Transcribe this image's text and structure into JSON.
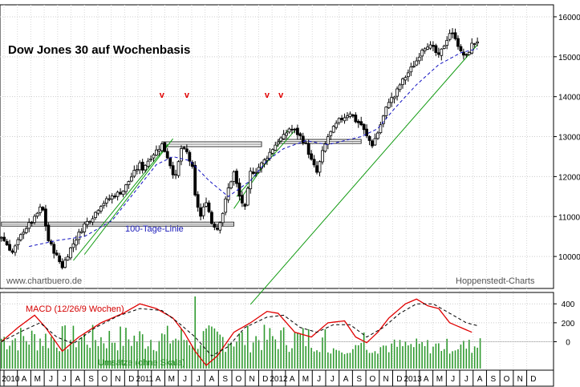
{
  "chart_data": {
    "type": "candlestick",
    "title": "Dow Jones 30 auf Wochenbasis",
    "source_left": "www.chartbuero.de",
    "source_right": "Hoppenstedt-Charts",
    "price_axis": {
      "ticks": [
        "16000",
        "15000",
        "14000",
        "13000",
        "12000",
        "11000",
        "10000"
      ],
      "range": [
        9200,
        16300
      ]
    },
    "macd_axis": {
      "ticks": [
        "400",
        "200",
        "0"
      ],
      "range": [
        -300,
        520
      ]
    },
    "x_months": [
      "2010",
      "A",
      "M",
      "J",
      "J",
      "A",
      "S",
      "O",
      "N",
      "D",
      "2011",
      "A",
      "M",
      "J",
      "J",
      "A",
      "S",
      "O",
      "N",
      "D",
      "2012",
      "A",
      "M",
      "J",
      "J",
      "A",
      "S",
      "O",
      "N",
      "D",
      "2013",
      "A",
      "M",
      "J",
      "J",
      "A",
      "S",
      "O",
      "N",
      "D"
    ],
    "highlight_years": [
      "2010",
      "2011",
      "2012",
      "2013"
    ],
    "weeks_total": 200,
    "price_series": {
      "name": "Dow Jones 30",
      "anchors": [
        [
          0,
          10500
        ],
        [
          4,
          10100
        ],
        [
          8,
          10650
        ],
        [
          12,
          10950
        ],
        [
          14,
          11200
        ],
        [
          15,
          11150
        ],
        [
          17,
          10400
        ],
        [
          20,
          10000
        ],
        [
          22,
          9750
        ],
        [
          25,
          10200
        ],
        [
          27,
          10450
        ],
        [
          30,
          10800
        ],
        [
          33,
          11000
        ],
        [
          36,
          11300
        ],
        [
          40,
          11500
        ],
        [
          44,
          11650
        ],
        [
          47,
          12000
        ],
        [
          50,
          12300
        ],
        [
          51,
          12200
        ],
        [
          54,
          12500
        ],
        [
          56,
          12650
        ],
        [
          58,
          12800
        ],
        [
          60,
          12500
        ],
        [
          62,
          12100
        ],
        [
          63,
          12000
        ],
        [
          65,
          12700
        ],
        [
          67,
          12600
        ],
        [
          69,
          12200
        ],
        [
          70,
          11500
        ],
        [
          72,
          11000
        ],
        [
          74,
          11400
        ],
        [
          76,
          10850
        ],
        [
          78,
          10700
        ],
        [
          80,
          11100
        ],
        [
          82,
          11700
        ],
        [
          84,
          12100
        ],
        [
          86,
          11500
        ],
        [
          88,
          11200
        ],
        [
          90,
          12100
        ],
        [
          92,
          12150
        ],
        [
          95,
          12400
        ],
        [
          98,
          12700
        ],
        [
          100,
          12900
        ],
        [
          102,
          13000
        ],
        [
          104,
          13200
        ],
        [
          106,
          13150
        ],
        [
          108,
          13000
        ],
        [
          110,
          12800
        ],
        [
          112,
          12400
        ],
        [
          114,
          12100
        ],
        [
          116,
          12600
        ],
        [
          118,
          13000
        ],
        [
          120,
          13200
        ],
        [
          122,
          13400
        ],
        [
          124,
          13500
        ],
        [
          126,
          13600
        ],
        [
          128,
          13400
        ],
        [
          130,
          13300
        ],
        [
          132,
          13000
        ],
        [
          134,
          12800
        ],
        [
          136,
          13100
        ],
        [
          138,
          13500
        ],
        [
          140,
          13900
        ],
        [
          142,
          14000
        ],
        [
          144,
          14300
        ],
        [
          146,
          14500
        ],
        [
          148,
          14700
        ],
        [
          150,
          14900
        ],
        [
          152,
          15200
        ],
        [
          154,
          15300
        ],
        [
          156,
          15200
        ],
        [
          158,
          15000
        ],
        [
          160,
          15300
        ],
        [
          162,
          15600
        ],
        [
          164,
          15500
        ],
        [
          166,
          15100
        ],
        [
          168,
          15000
        ],
        [
          170,
          15300
        ],
        [
          172,
          15400
        ]
      ]
    },
    "sma100": {
      "name": "100-Tage-Linie",
      "anchors": [
        [
          10,
          10250
        ],
        [
          20,
          10400
        ],
        [
          30,
          10500
        ],
        [
          40,
          10900
        ],
        [
          48,
          11600
        ],
        [
          56,
          12300
        ],
        [
          62,
          12500
        ],
        [
          68,
          12400
        ],
        [
          75,
          11900
        ],
        [
          82,
          11500
        ],
        [
          90,
          11900
        ],
        [
          96,
          12400
        ],
        [
          102,
          12700
        ],
        [
          110,
          12900
        ],
        [
          118,
          12800
        ],
        [
          124,
          12900
        ],
        [
          130,
          13000
        ],
        [
          136,
          13200
        ],
        [
          142,
          13700
        ],
        [
          150,
          14300
        ],
        [
          158,
          14800
        ],
        [
          166,
          15100
        ],
        [
          172,
          15200
        ]
      ]
    },
    "resistance_zones": [
      {
        "weeks": [
          58,
          94
        ],
        "range": [
          12750,
          12870
        ]
      },
      {
        "weeks": [
          100,
          130
        ],
        "range": [
          12830,
          12930
        ]
      },
      {
        "weeks": [
          0,
          84
        ],
        "range": [
          10760,
          10860
        ]
      }
    ],
    "trendlines": [
      {
        "from": [
          90,
          8800
        ],
        "to": [
          172,
          15300
        ]
      },
      {
        "from": [
          26,
          9900
        ],
        "to": [
          60,
          12800
        ]
      },
      {
        "from": [
          30,
          10050
        ],
        "to": [
          62,
          12950
        ]
      },
      {
        "from": [
          84,
          11200
        ],
        "to": [
          104,
          13200
        ]
      },
      {
        "from": [
          85,
          11500
        ],
        "to": [
          106,
          13150
        ]
      }
    ],
    "markers_v": [
      {
        "week": 58,
        "label": "v"
      },
      {
        "week": 67,
        "label": "v"
      },
      {
        "week": 96,
        "label": "v"
      },
      {
        "week": 101,
        "label": "v"
      }
    ],
    "annotation_sma": "100-Tage-Linie",
    "macd": {
      "label": "MACD (12/26/9 Wochen)",
      "line_anchors": [
        [
          0,
          0
        ],
        [
          6,
          150
        ],
        [
          12,
          280
        ],
        [
          16,
          150
        ],
        [
          22,
          -100
        ],
        [
          28,
          50
        ],
        [
          36,
          200
        ],
        [
          44,
          300
        ],
        [
          50,
          400
        ],
        [
          56,
          350
        ],
        [
          62,
          250
        ],
        [
          66,
          100
        ],
        [
          70,
          -100
        ],
        [
          74,
          -250
        ],
        [
          78,
          -150
        ],
        [
          84,
          100
        ],
        [
          90,
          200
        ],
        [
          96,
          320
        ],
        [
          100,
          300
        ],
        [
          106,
          100
        ],
        [
          112,
          50
        ],
        [
          118,
          200
        ],
        [
          124,
          220
        ],
        [
          128,
          50
        ],
        [
          132,
          -10
        ],
        [
          136,
          100
        ],
        [
          140,
          250
        ],
        [
          146,
          400
        ],
        [
          150,
          450
        ],
        [
          154,
          380
        ],
        [
          158,
          350
        ],
        [
          162,
          200
        ],
        [
          166,
          150
        ],
        [
          170,
          100
        ]
      ],
      "signal_anchors": [
        [
          0,
          0
        ],
        [
          8,
          120
        ],
        [
          14,
          200
        ],
        [
          20,
          50
        ],
        [
          26,
          -20
        ],
        [
          34,
          150
        ],
        [
          42,
          270
        ],
        [
          50,
          350
        ],
        [
          58,
          330
        ],
        [
          64,
          200
        ],
        [
          70,
          50
        ],
        [
          76,
          -150
        ],
        [
          82,
          -50
        ],
        [
          88,
          150
        ],
        [
          96,
          260
        ],
        [
          102,
          280
        ],
        [
          108,
          150
        ],
        [
          114,
          100
        ],
        [
          120,
          180
        ],
        [
          126,
          180
        ],
        [
          132,
          50
        ],
        [
          138,
          150
        ],
        [
          144,
          300
        ],
        [
          150,
          400
        ],
        [
          156,
          400
        ],
        [
          162,
          300
        ],
        [
          168,
          200
        ],
        [
          172,
          170
        ]
      ]
    },
    "volume_label": "Umsätze (ohne Skala)"
  }
}
